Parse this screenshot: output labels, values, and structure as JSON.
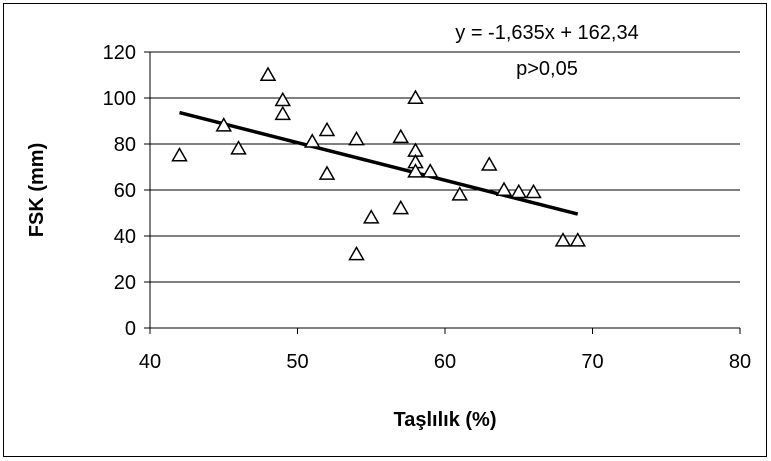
{
  "chart_data": {
    "type": "scatter",
    "title": "",
    "xlabel": "Taşlılık (%)",
    "ylabel": "FSK (mm)",
    "xlim": [
      40,
      80
    ],
    "ylim": [
      0,
      120
    ],
    "x_ticks": [
      40,
      50,
      60,
      70,
      80
    ],
    "y_ticks": [
      0,
      20,
      40,
      60,
      80,
      100,
      120
    ],
    "x_tick_labels": [
      "40",
      "50",
      "60",
      "70",
      "80"
    ],
    "y_tick_labels": [
      "0",
      "20",
      "40",
      "60",
      "80",
      "100",
      "120"
    ],
    "grid": {
      "horizontal": true,
      "vertical": false
    },
    "legend": "none",
    "marker": "open-triangle",
    "marker_color": "#000000",
    "series": [
      {
        "points": [
          {
            "x": 42,
            "y": 75
          },
          {
            "x": 45,
            "y": 88
          },
          {
            "x": 46,
            "y": 78
          },
          {
            "x": 48,
            "y": 110
          },
          {
            "x": 49,
            "y": 99
          },
          {
            "x": 49,
            "y": 93
          },
          {
            "x": 51,
            "y": 81
          },
          {
            "x": 52,
            "y": 86
          },
          {
            "x": 52,
            "y": 67
          },
          {
            "x": 54,
            "y": 82
          },
          {
            "x": 54,
            "y": 32
          },
          {
            "x": 55,
            "y": 48
          },
          {
            "x": 57,
            "y": 83
          },
          {
            "x": 57,
            "y": 52
          },
          {
            "x": 58,
            "y": 100
          },
          {
            "x": 58,
            "y": 77
          },
          {
            "x": 58,
            "y": 72
          },
          {
            "x": 58,
            "y": 68
          },
          {
            "x": 59,
            "y": 68
          },
          {
            "x": 61,
            "y": 58
          },
          {
            "x": 63,
            "y": 71
          },
          {
            "x": 64,
            "y": 60
          },
          {
            "x": 65,
            "y": 59
          },
          {
            "x": 66,
            "y": 59
          },
          {
            "x": 68,
            "y": 38
          },
          {
            "x": 69,
            "y": 38
          }
        ]
      }
    ],
    "trendline": {
      "slope": -1.635,
      "intercept": 162.34,
      "x_start": 42,
      "x_end": 69,
      "color": "#000000"
    },
    "annotations": {
      "equation": "y = -1,635x + 162,34",
      "significance": "p>0,05"
    }
  }
}
